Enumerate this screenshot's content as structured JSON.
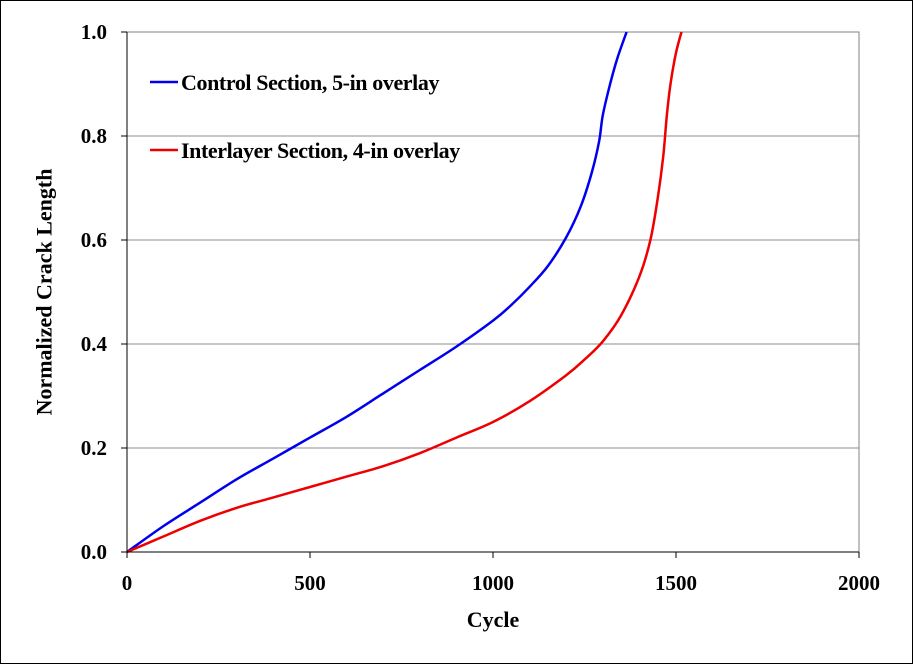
{
  "chart_data": {
    "type": "line",
    "title": "",
    "xlabel": "Cycle",
    "ylabel": "Normalized Crack Length",
    "xlim": [
      0,
      2000
    ],
    "ylim": [
      0,
      1.0
    ],
    "x_ticks": [
      0,
      500,
      1000,
      1500,
      2000
    ],
    "x_tick_labels": [
      "0",
      "500",
      "1000",
      "1500",
      "2000"
    ],
    "y_ticks": [
      0,
      0.2,
      0.4,
      0.6,
      0.8,
      1.0
    ],
    "y_tick_labels": [
      "0.0",
      "0.2",
      "0.4",
      "0.6",
      "0.8",
      "1.0"
    ],
    "grid": "horizontal",
    "legend_position": "top-left",
    "series": [
      {
        "name": "Control Section, 5-in overlay",
        "color": "#0000ee",
        "x": [
          0,
          100,
          200,
          300,
          400,
          500,
          600,
          700,
          800,
          900,
          1000,
          1050,
          1100,
          1150,
          1200,
          1240,
          1270,
          1290,
          1300,
          1320,
          1340,
          1365
        ],
        "y": [
          0,
          0.05,
          0.095,
          0.14,
          0.18,
          0.22,
          0.26,
          0.305,
          0.35,
          0.395,
          0.445,
          0.475,
          0.51,
          0.55,
          0.605,
          0.665,
          0.73,
          0.79,
          0.84,
          0.9,
          0.95,
          1.0
        ]
      },
      {
        "name": "Interlayer Section, 4-in overlay",
        "color": "#ee0000",
        "x": [
          0,
          100,
          200,
          300,
          400,
          500,
          600,
          700,
          800,
          900,
          1000,
          1100,
          1200,
          1250,
          1300,
          1350,
          1400,
          1430,
          1450,
          1465,
          1475,
          1485,
          1500,
          1515
        ],
        "y": [
          0,
          0.03,
          0.06,
          0.085,
          0.105,
          0.125,
          0.145,
          0.165,
          0.19,
          0.22,
          0.25,
          0.29,
          0.34,
          0.37,
          0.405,
          0.455,
          0.53,
          0.6,
          0.68,
          0.76,
          0.84,
          0.9,
          0.96,
          1.0
        ]
      }
    ]
  }
}
